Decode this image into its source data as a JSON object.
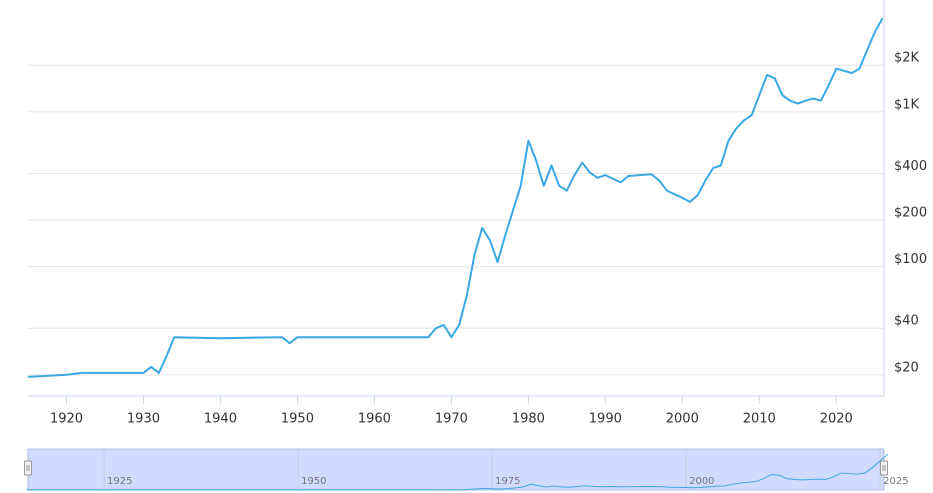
{
  "chart_data": {
    "type": "line",
    "log_y": true,
    "grid": true,
    "color": "#3aa8e4",
    "x": [
      1915,
      1920,
      1922,
      1930,
      1931,
      1932,
      1933,
      1934,
      1940,
      1948,
      1949,
      1950,
      1960,
      1967,
      1968,
      1969,
      1970,
      1971,
      1972,
      1973,
      1974,
      1975,
      1976,
      1977,
      1978,
      1979,
      1980,
      1981,
      1982,
      1983,
      1984,
      1985,
      1986,
      1987,
      1988,
      1989,
      1990,
      1992,
      1993,
      1996,
      1997,
      1998,
      2000,
      2001,
      2002,
      2003,
      2004,
      2005,
      2006,
      2007,
      2008,
      2009,
      2010,
      2011,
      2012,
      2013,
      2014,
      2015,
      2016,
      2017,
      2018,
      2019,
      2020,
      2021,
      2022,
      2023,
      2024,
      2025,
      2026
    ],
    "values": [
      19.4,
      20,
      20.6,
      20.6,
      22.5,
      20.6,
      26.5,
      35,
      34.5,
      35,
      32,
      35,
      35,
      35,
      40,
      42,
      35,
      42,
      65,
      119,
      178,
      148,
      107,
      160,
      231,
      333,
      652,
      485,
      333,
      450,
      333,
      310,
      390,
      470,
      405,
      375,
      390,
      350,
      385,
      395,
      360,
      310,
      278,
      262,
      290,
      360,
      433,
      450,
      652,
      781,
      880,
      950,
      1280,
      1730,
      1650,
      1280,
      1180,
      1130,
      1180,
      1220,
      1180,
      1480,
      1900,
      1840,
      1780,
      1900,
      2500,
      3270,
      4020
    ],
    "xlim": [
      1915,
      2026.2
    ],
    "xticks": [
      1920,
      1930,
      1940,
      1950,
      1960,
      1970,
      1980,
      1990,
      2000,
      2010,
      2020
    ],
    "ylim": [
      14.6,
      4900
    ],
    "yticks": [
      {
        "value": 20,
        "label": "$20"
      },
      {
        "value": 40,
        "label": "$40"
      },
      {
        "value": 100,
        "label": "$100"
      },
      {
        "value": 200,
        "label": "$200"
      },
      {
        "value": 400,
        "label": "$400"
      },
      {
        "value": 1000,
        "label": "$1K"
      },
      {
        "value": 2000,
        "label": "$2K"
      }
    ],
    "navigator": {
      "xlim": [
        1915.2,
        2025.5
      ],
      "ylim": [
        0,
        4600
      ],
      "xticks": [
        1925,
        1950,
        1975,
        2000,
        2025
      ]
    }
  }
}
